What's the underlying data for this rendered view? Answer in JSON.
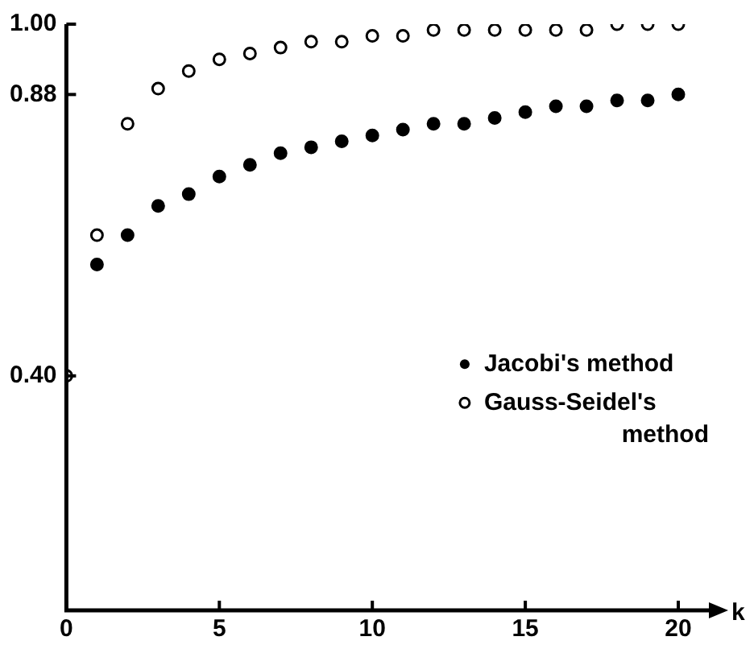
{
  "chart_data": {
    "type": "scatter",
    "xlabel": "k",
    "x": [
      0,
      1,
      2,
      3,
      4,
      5,
      6,
      7,
      8,
      9,
      10,
      11,
      12,
      13,
      14,
      15,
      16,
      17,
      18,
      19,
      20
    ],
    "series": [
      {
        "name": "Jacobi's method",
        "color": "#000000",
        "x": [
          1,
          2,
          3,
          4,
          5,
          6,
          7,
          8,
          9,
          10,
          11,
          12,
          13,
          14,
          15,
          16,
          17,
          18,
          19,
          20
        ],
        "values": [
          0.59,
          0.64,
          0.69,
          0.71,
          0.74,
          0.76,
          0.78,
          0.79,
          0.8,
          0.81,
          0.82,
          0.83,
          0.83,
          0.84,
          0.85,
          0.86,
          0.86,
          0.87,
          0.87,
          0.88
        ]
      },
      {
        "name": "Gauss-Seidel's method",
        "color": "#000000",
        "values": [
          0.4,
          0.64,
          0.83,
          0.89,
          0.92,
          0.94,
          0.95,
          0.96,
          0.97,
          0.97,
          0.98,
          0.98,
          0.99,
          0.99,
          0.99,
          0.99,
          0.99,
          0.99,
          1.0,
          1.0,
          1.0
        ]
      }
    ],
    "xlim": [
      0,
      21
    ],
    "ylim": [
      0,
      1
    ],
    "xticks": [
      0,
      5,
      10,
      15,
      20
    ],
    "yticks": [
      {
        "value": 0.4,
        "label": "0.40"
      },
      0.88,
      {
        "value": 1,
        "label": "1.00"
      }
    ],
    "grid": false,
    "legend": "right",
    "marker": "circle"
  }
}
